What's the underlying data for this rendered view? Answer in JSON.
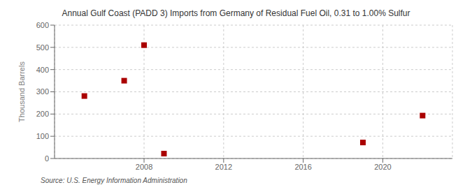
{
  "chart_data": {
    "type": "scatter",
    "title": "Annual Gulf Coast (PADD 3) Imports from Germany of Residual Fuel Oil, 0.31 to 1.00% Sulfur",
    "ylabel": "Thousand Barrels",
    "annotations": [
      "Source: U.S. Energy Information Administration"
    ],
    "x": [
      2005,
      2007,
      2008,
      2009,
      2019,
      2022
    ],
    "values": [
      281,
      350,
      510,
      22,
      72,
      193
    ],
    "color": "#aa0000",
    "marker": "square",
    "xlim": [
      2003.5,
      2023.5
    ],
    "xticks": [
      2008,
      2012,
      2016,
      2020
    ],
    "ylim": [
      0,
      600
    ],
    "yticks": [
      0,
      100,
      200,
      300,
      400,
      500,
      600
    ],
    "grid": true
  }
}
